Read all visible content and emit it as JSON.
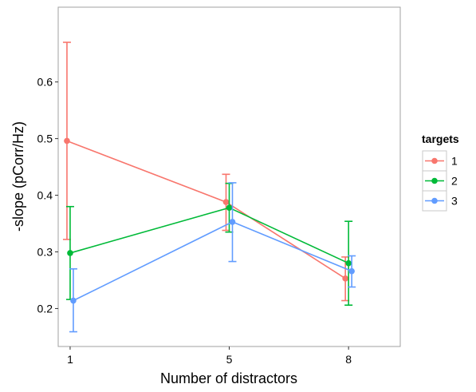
{
  "chart_data": {
    "type": "line",
    "title": "",
    "xlabel": "Number of distractors",
    "ylabel": "-slope (pCorr/Hz)",
    "x_ticks": [
      1,
      5,
      8
    ],
    "y_ticks": [
      0.2,
      0.3,
      0.4,
      0.5,
      0.6
    ],
    "y_tick_labels": [
      "0.2",
      "0.3",
      "0.4",
      "0.5",
      "0.6"
    ],
    "x_tick_labels": [
      "1",
      "5",
      "8"
    ],
    "xlim": [
      0.7,
      9.3
    ],
    "ylim": [
      0.133,
      0.732
    ],
    "grid": false,
    "legend": {
      "title": "targets",
      "position": "right"
    },
    "series": [
      {
        "name": "1",
        "color": "#F8766D",
        "points": [
          {
            "x": 1,
            "y": 0.496,
            "lo": 0.322,
            "hi": 0.67
          },
          {
            "x": 5,
            "y": 0.388,
            "lo": 0.338,
            "hi": 0.437
          },
          {
            "x": 8,
            "y": 0.253,
            "lo": 0.214,
            "hi": 0.291
          }
        ]
      },
      {
        "name": "2",
        "color": "#00BA38",
        "points": [
          {
            "x": 1,
            "y": 0.298,
            "lo": 0.216,
            "hi": 0.38
          },
          {
            "x": 5,
            "y": 0.378,
            "lo": 0.335,
            "hi": 0.421
          },
          {
            "x": 8,
            "y": 0.28,
            "lo": 0.206,
            "hi": 0.354
          }
        ]
      },
      {
        "name": "3",
        "color": "#619CFF",
        "points": [
          {
            "x": 1,
            "y": 0.214,
            "lo": 0.159,
            "hi": 0.27
          },
          {
            "x": 5,
            "y": 0.353,
            "lo": 0.283,
            "hi": 0.422
          },
          {
            "x": 8,
            "y": 0.266,
            "lo": 0.238,
            "hi": 0.293
          }
        ]
      }
    ]
  }
}
